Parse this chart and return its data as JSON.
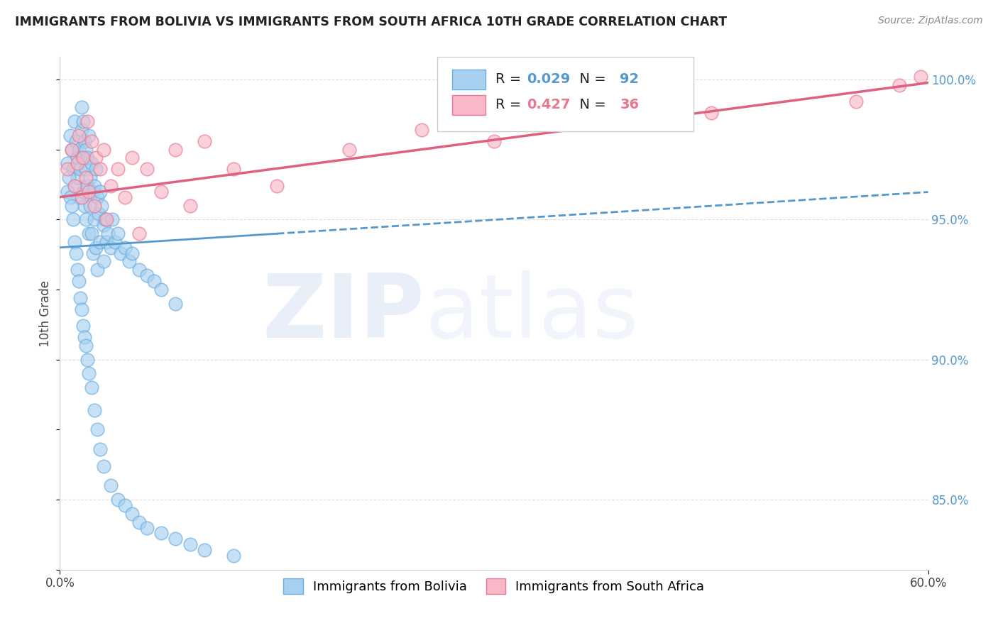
{
  "title": "IMMIGRANTS FROM BOLIVIA VS IMMIGRANTS FROM SOUTH AFRICA 10TH GRADE CORRELATION CHART",
  "source": "Source: ZipAtlas.com",
  "ylabel": "10th Grade",
  "xlim": [
    0.0,
    0.6
  ],
  "ylim": [
    0.825,
    1.008
  ],
  "yticks": [
    0.85,
    0.9,
    0.95,
    1.0
  ],
  "ytick_labels": [
    "85.0%",
    "90.0%",
    "95.0%",
    "100.0%"
  ],
  "bolivia_color": "#A8D0F0",
  "bolivia_edge": "#6AAEE0",
  "south_africa_color": "#F8B8C8",
  "south_africa_edge": "#E87890",
  "trend_bolivia_color": "#5599CC",
  "trend_sa_color": "#E06080",
  "bolivia_R": 0.029,
  "bolivia_N": 92,
  "south_africa_R": 0.427,
  "south_africa_N": 36,
  "legend_label_bolivia": "Immigrants from Bolivia",
  "legend_label_south_africa": "Immigrants from South Africa",
  "watermark_zip": "ZIP",
  "watermark_atlas": "atlas",
  "watermark_color_zip": "#C8D8F0",
  "watermark_color_atlas": "#C8D8F0",
  "bolivia_x": [
    0.005,
    0.007,
    0.008,
    0.009,
    0.01,
    0.01,
    0.011,
    0.012,
    0.012,
    0.013,
    0.013,
    0.014,
    0.015,
    0.015,
    0.015,
    0.016,
    0.016,
    0.017,
    0.017,
    0.018,
    0.018,
    0.018,
    0.019,
    0.019,
    0.02,
    0.02,
    0.021,
    0.021,
    0.022,
    0.022,
    0.023,
    0.023,
    0.024,
    0.024,
    0.025,
    0.025,
    0.026,
    0.026,
    0.027,
    0.028,
    0.028,
    0.029,
    0.03,
    0.03,
    0.031,
    0.032,
    0.033,
    0.035,
    0.036,
    0.038,
    0.04,
    0.042,
    0.045,
    0.048,
    0.05,
    0.055,
    0.06,
    0.065,
    0.07,
    0.08,
    0.005,
    0.006,
    0.007,
    0.008,
    0.009,
    0.01,
    0.011,
    0.012,
    0.013,
    0.014,
    0.015,
    0.016,
    0.017,
    0.018,
    0.019,
    0.02,
    0.022,
    0.024,
    0.026,
    0.028,
    0.03,
    0.035,
    0.04,
    0.045,
    0.05,
    0.055,
    0.06,
    0.07,
    0.08,
    0.09,
    0.1,
    0.12
  ],
  "bolivia_y": [
    0.97,
    0.98,
    0.975,
    0.968,
    0.985,
    0.962,
    0.978,
    0.972,
    0.965,
    0.958,
    0.975,
    0.968,
    0.99,
    0.982,
    0.972,
    0.985,
    0.96,
    0.978,
    0.955,
    0.975,
    0.968,
    0.95,
    0.972,
    0.962,
    0.98,
    0.945,
    0.965,
    0.955,
    0.97,
    0.945,
    0.96,
    0.938,
    0.962,
    0.95,
    0.968,
    0.94,
    0.958,
    0.932,
    0.952,
    0.96,
    0.942,
    0.955,
    0.948,
    0.935,
    0.95,
    0.942,
    0.945,
    0.94,
    0.95,
    0.942,
    0.945,
    0.938,
    0.94,
    0.935,
    0.938,
    0.932,
    0.93,
    0.928,
    0.925,
    0.92,
    0.96,
    0.965,
    0.958,
    0.955,
    0.95,
    0.942,
    0.938,
    0.932,
    0.928,
    0.922,
    0.918,
    0.912,
    0.908,
    0.905,
    0.9,
    0.895,
    0.89,
    0.882,
    0.875,
    0.868,
    0.862,
    0.855,
    0.85,
    0.848,
    0.845,
    0.842,
    0.84,
    0.838,
    0.836,
    0.834,
    0.832,
    0.83
  ],
  "south_africa_x": [
    0.005,
    0.008,
    0.01,
    0.012,
    0.013,
    0.015,
    0.016,
    0.018,
    0.019,
    0.02,
    0.022,
    0.024,
    0.025,
    0.028,
    0.03,
    0.032,
    0.035,
    0.04,
    0.045,
    0.05,
    0.055,
    0.06,
    0.07,
    0.08,
    0.09,
    0.1,
    0.12,
    0.15,
    0.2,
    0.25,
    0.3,
    0.35,
    0.45,
    0.55,
    0.58,
    0.595
  ],
  "south_africa_y": [
    0.968,
    0.975,
    0.962,
    0.97,
    0.98,
    0.958,
    0.972,
    0.965,
    0.985,
    0.96,
    0.978,
    0.955,
    0.972,
    0.968,
    0.975,
    0.95,
    0.962,
    0.968,
    0.958,
    0.972,
    0.945,
    0.968,
    0.96,
    0.975,
    0.955,
    0.978,
    0.968,
    0.962,
    0.975,
    0.982,
    0.978,
    0.985,
    0.988,
    0.992,
    0.998,
    1.001
  ]
}
